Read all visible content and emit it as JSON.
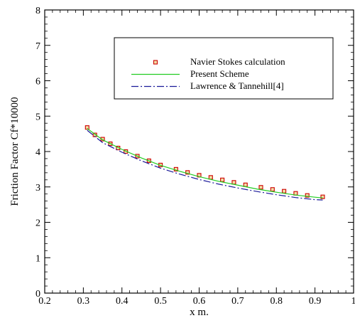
{
  "chart_data": {
    "type": "line",
    "xlabel": "x m.",
    "ylabel": "Friction Factor Cf*10000",
    "xlim": [
      0.2,
      1.0
    ],
    "ylim": [
      0,
      8
    ],
    "xticks": [
      0.2,
      0.3,
      0.4,
      0.5,
      0.6,
      0.7,
      0.8,
      0.9,
      1.0
    ],
    "xtick_labels": [
      "0.2",
      "0.3",
      "0.4",
      "0.5",
      "0.6",
      "0.7",
      "0.8",
      "0.9",
      "1"
    ],
    "yticks": [
      0,
      1,
      2,
      3,
      4,
      5,
      6,
      7,
      8
    ],
    "ytick_labels": [
      "0",
      "1",
      "2",
      "3",
      "4",
      "5",
      "6",
      "7",
      "8"
    ],
    "grid": false,
    "legend_position": "top-right",
    "series": [
      {
        "name": "Navier Stokes calculation",
        "style": "square-markers",
        "color": "#cc0000",
        "fill": "#f2dfa6",
        "x": [
          0.31,
          0.33,
          0.35,
          0.37,
          0.39,
          0.41,
          0.44,
          0.47,
          0.5,
          0.54,
          0.57,
          0.6,
          0.63,
          0.66,
          0.69,
          0.72,
          0.76,
          0.79,
          0.82,
          0.85,
          0.88,
          0.92
        ],
        "y": [
          4.68,
          4.47,
          4.35,
          4.22,
          4.1,
          4.0,
          3.87,
          3.74,
          3.62,
          3.5,
          3.41,
          3.33,
          3.27,
          3.2,
          3.13,
          3.06,
          2.99,
          2.93,
          2.88,
          2.82,
          2.76,
          2.72
        ]
      },
      {
        "name": "Present Scheme",
        "style": "solid",
        "color": "#22cc22",
        "x": [
          0.31,
          0.35,
          0.4,
          0.45,
          0.5,
          0.55,
          0.6,
          0.65,
          0.7,
          0.75,
          0.8,
          0.85,
          0.9,
          0.92
        ],
        "y": [
          4.65,
          4.33,
          4.06,
          3.82,
          3.61,
          3.44,
          3.29,
          3.16,
          3.05,
          2.94,
          2.85,
          2.77,
          2.71,
          2.69
        ]
      },
      {
        "name": "Lawrence & Tannehill[4]",
        "style": "dash-dot",
        "color": "#1a1a99",
        "x": [
          0.31,
          0.35,
          0.4,
          0.45,
          0.5,
          0.55,
          0.6,
          0.65,
          0.7,
          0.75,
          0.8,
          0.85,
          0.9,
          0.92
        ],
        "y": [
          4.6,
          4.25,
          3.98,
          3.74,
          3.53,
          3.36,
          3.21,
          3.08,
          2.97,
          2.87,
          2.78,
          2.7,
          2.64,
          2.63
        ]
      }
    ]
  }
}
